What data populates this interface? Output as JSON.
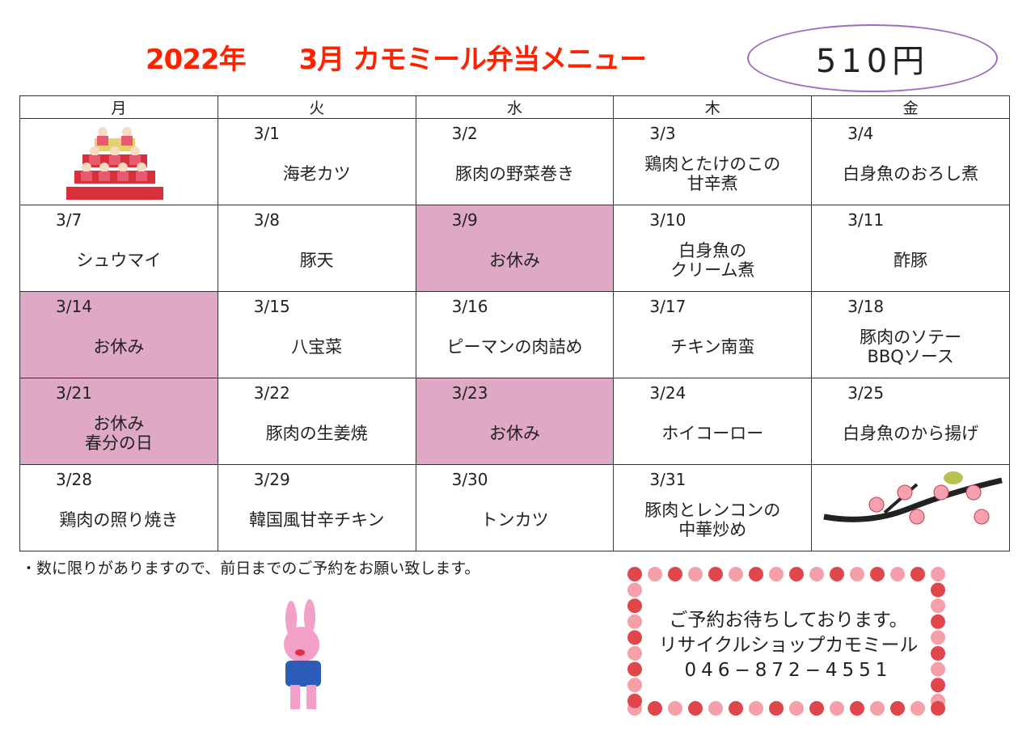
{
  "header": {
    "title": "2022年　　3月 カモミール弁当メニュー",
    "price": "510円"
  },
  "weekdays": [
    "月",
    "火",
    "水",
    "木",
    "金"
  ],
  "weeks": [
    [
      {
        "image": "hina-dolls"
      },
      {
        "date": "3/1",
        "menu": "海老カツ"
      },
      {
        "date": "3/2",
        "menu": "豚肉の野菜巻き"
      },
      {
        "date": "3/3",
        "menu": "鶏肉とたけのこの\n甘辛煮"
      },
      {
        "date": "3/4",
        "menu": "白身魚のおろし煮"
      }
    ],
    [
      {
        "date": "3/7",
        "menu": "シュウマイ"
      },
      {
        "date": "3/8",
        "menu": "豚天"
      },
      {
        "date": "3/9",
        "menu": "お休み",
        "closed": true
      },
      {
        "date": "3/10",
        "menu": "白身魚の\nクリーム煮"
      },
      {
        "date": "3/11",
        "menu": "酢豚"
      }
    ],
    [
      {
        "date": "3/14",
        "menu": "お休み",
        "closed": true
      },
      {
        "date": "3/15",
        "menu": "八宝菜"
      },
      {
        "date": "3/16",
        "menu": "ピーマンの肉詰め"
      },
      {
        "date": "3/17",
        "menu": "チキン南蛮"
      },
      {
        "date": "3/18",
        "menu": "豚肉のソテー\nBBQソース"
      }
    ],
    [
      {
        "date": "3/21",
        "menu": "お休み\n春分の日",
        "closed": true
      },
      {
        "date": "3/22",
        "menu": "豚肉の生姜焼"
      },
      {
        "date": "3/23",
        "menu": "お休み",
        "closed": true
      },
      {
        "date": "3/24",
        "menu": "ホイコーロー"
      },
      {
        "date": "3/25",
        "menu": "白身魚のから揚げ"
      }
    ],
    [
      {
        "date": "3/28",
        "menu": "鶏肉の照り焼き"
      },
      {
        "date": "3/29",
        "menu": "韓国風甘辛チキン"
      },
      {
        "date": "3/30",
        "menu": "トンカツ"
      },
      {
        "date": "3/31",
        "menu": "豚肉とレンコンの\n中華炒め"
      },
      {
        "image": "plum-branch-bird"
      }
    ]
  ],
  "note": "・数に限りがありますので、前日までのご予約をお願い致します。",
  "contact": {
    "line1": "ご予約お待ちしております。",
    "line2": "リサイクルショップカモミール",
    "phone": "046−872−4551"
  },
  "colors": {
    "title": "#ff2200",
    "closed": "#dfa9c5",
    "oval": "#9b6fc0",
    "flower_dark": "#e0474c",
    "flower_light": "#f5a0a8"
  }
}
